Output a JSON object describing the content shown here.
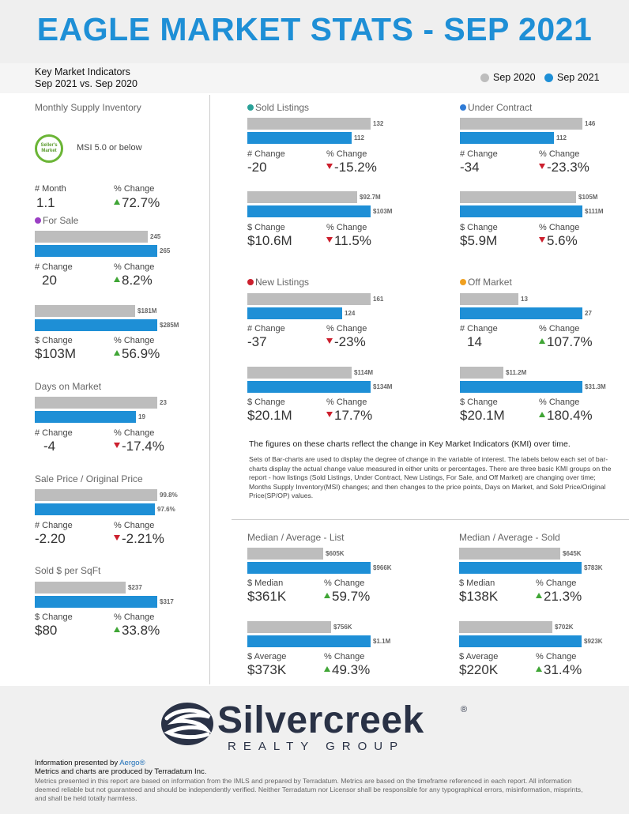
{
  "title": "EAGLE MARKET STATS - SEP 2021",
  "subheader": {
    "line1": "Key Market Indicators",
    "line2": "Sep 2021 vs. Sep 2020"
  },
  "legend": [
    {
      "label": "Sep 2020",
      "color": "#bdbdbd"
    },
    {
      "label": "Sep 2021",
      "color": "#1e8fd6"
    }
  ],
  "msi": {
    "title": "Monthly Supply Inventory",
    "badge": "Seller's Market",
    "note": "MSI 5.0 or below",
    "label_a": "# Month",
    "value_a": "1.1",
    "label_b": "% Change",
    "value_b": "72.7%"
  },
  "left_sections": {
    "for_sale": {
      "title": "For Sale",
      "dot": "#9b3fc4",
      "b1_2020": "245",
      "b1_2021": "265",
      "s1_label_a": "# Change",
      "s1_val_a": "20",
      "s1_label_b": "% Change",
      "s1_val_b": "8.2%",
      "b2_2020": "$181M",
      "b2_2021": "$285M",
      "s2_label_a": "$ Change",
      "s2_val_a": "$103M",
      "s2_label_b": "% Change",
      "s2_val_b": "56.9%"
    },
    "days": {
      "title": "Days on Market",
      "b_2020": "23",
      "b_2021": "19",
      "label_a": "# Change",
      "val_a": "-4",
      "label_b": "% Change",
      "val_b": "-17.4%"
    },
    "sale_price": {
      "title": "Sale Price / Original Price",
      "b_2020": "99.8%",
      "b_2021": "97.6%",
      "label_a": "# Change",
      "val_a": "-2.20",
      "label_b": "% Change",
      "val_b": "-2.21%"
    },
    "sqft": {
      "title": "Sold $ per SqFt",
      "b_2020": "$237",
      "b_2021": "$317",
      "label_a": "$ Change",
      "val_a": "$80",
      "label_b": "% Change",
      "val_b": "33.8%"
    }
  },
  "grid": {
    "sold": {
      "title": "Sold Listings",
      "dot": "#2aa198",
      "b1_2020": "132",
      "b1_2021": "112",
      "s1_label_a": "# Change",
      "s1_val_a": "-20",
      "s1_label_b": "% Change",
      "s1_val_b": "-15.2%",
      "b2_2020": "$92.7M",
      "b2_2021": "$103M",
      "s2_label_a": "$ Change",
      "s2_val_a": "$10.6M",
      "s2_label_b": "% Change",
      "s2_val_b": "11.5%"
    },
    "under_contract": {
      "title": "Under Contract",
      "dot": "#2f7bd6",
      "b1_2020": "146",
      "b1_2021": "112",
      "s1_label_a": "# Change",
      "s1_val_a": "-34",
      "s1_label_b": "% Change",
      "s1_val_b": "-23.3%",
      "b2_2020": "$105M",
      "b2_2021": "$111M",
      "s2_label_a": "$ Change",
      "s2_val_a": "$5.9M",
      "s2_label_b": "% Change",
      "s2_val_b": "5.6%"
    },
    "new_listings": {
      "title": "New Listings",
      "dot": "#cc1f2d",
      "b1_2020": "161",
      "b1_2021": "124",
      "s1_label_a": "# Change",
      "s1_val_a": "-37",
      "s1_label_b": "% Change",
      "s1_val_b": "-23%",
      "b2_2020": "$114M",
      "b2_2021": "$134M",
      "s2_label_a": "$ Change",
      "s2_val_a": "$20.1M",
      "s2_label_b": "% Change",
      "s2_val_b": "17.7%"
    },
    "off_market": {
      "title": "Off Market",
      "dot": "#f0a020",
      "b1_2020": "13",
      "b1_2021": "27",
      "s1_label_a": "# Change",
      "s1_val_a": "14",
      "s1_label_b": "% Change",
      "s1_val_b": "107.7%",
      "b2_2020": "$11.2M",
      "b2_2021": "$31.3M",
      "s2_label_a": "$ Change",
      "s2_val_a": "$20.1M",
      "s2_label_b": "% Change",
      "s2_val_b": "180.4%"
    }
  },
  "notes": {
    "main": "The figures on these charts reflect the change in Key Market Indicators (KMI) over time.",
    "body": "Sets of Bar-charts are used to display the degree of change in the variable of interest. The labels below each set of bar-charts display the actual change value measured in either units or percentages. There are three basic KMI groups on the report - how listings (Sold Listings, Under Contract, New Listings, For Sale, and Off Market) are changing over time; Months Supply Inventory(MSI) changes; and then changes to the price points, Days on Market, and Sold Price/Original Price(SP/OP) values."
  },
  "median": {
    "list": {
      "title": "Median / Average - List",
      "b1_2020": "$605K",
      "b1_2021": "$966K",
      "s1_label_a": "$ Median",
      "s1_val_a": "$361K",
      "s1_label_b": "% Change",
      "s1_val_b": "59.7%",
      "b2_2020": "$756K",
      "b2_2021": "$1.1M",
      "s2_label_a": "$ Average",
      "s2_val_a": "$373K",
      "s2_label_b": "% Change",
      "s2_val_b": "49.3%"
    },
    "sold": {
      "title": "Median / Average - Sold",
      "b1_2020": "$645K",
      "b1_2021": "$783K",
      "s1_label_a": "$ Median",
      "s1_val_a": "$138K",
      "s1_label_b": "% Change",
      "s1_val_b": "21.3%",
      "b2_2020": "$702K",
      "b2_2021": "$923K",
      "s2_label_a": "$ Average",
      "s2_val_a": "$220K",
      "s2_label_b": "% Change",
      "s2_val_b": "31.4%"
    }
  },
  "brand": {
    "name": "Silvercreek",
    "sub": "REALTY GROUP",
    "reg": "®"
  },
  "footer": {
    "presented_prefix": "Information presented by",
    "presented_link": "Aergo®",
    "line2": "Metrics and charts are produced by Terradatum Inc.",
    "disclaimer": "Metrics presented in this report are based on information from the IMLS and prepared by Terradatum. Metrics are based on the timeframe referenced in each report. All information deemed reliable but not guaranteed and should be independently verified. Neither Terradatum nor Licensor shall be responsible for any typographical errors, misinformation, misprints, and shall be held totally harmless."
  }
}
